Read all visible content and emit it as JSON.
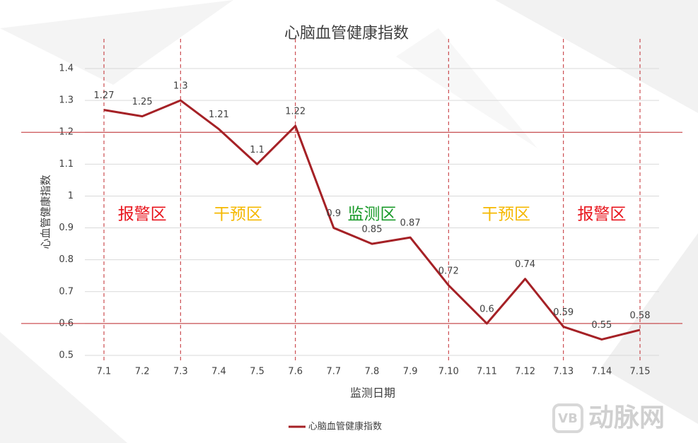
{
  "chart_data": {
    "type": "line",
    "title": "心脑血管健康指数",
    "x_label": "监测日期",
    "y_label": "心血管健康指数",
    "categories": [
      "7.1",
      "7.2",
      "7.3",
      "7.4",
      "7.5",
      "7.6",
      "7.7",
      "7.8",
      "7.9",
      "7.10",
      "7.11",
      "7.12",
      "7.13",
      "7.14",
      "7.15"
    ],
    "series": [
      {
        "name": "心脑血管健康指数",
        "color": "#a52126",
        "values": [
          1.27,
          1.25,
          1.3,
          1.21,
          1.1,
          1.22,
          0.9,
          0.85,
          0.87,
          0.72,
          0.6,
          0.74,
          0.59,
          0.55,
          0.58
        ]
      }
    ],
    "ylim": [
      0.5,
      1.4
    ],
    "yticks": [
      0.5,
      0.6,
      0.7,
      0.8,
      0.9,
      1,
      1.1,
      1.2,
      1.3,
      1.4
    ],
    "grid": true,
    "hlines": [
      1.2,
      0.6
    ],
    "hline_color": "#c0282d",
    "zones": [
      {
        "label": "报警区",
        "color": "#e8141c",
        "from": "7.1",
        "to": "7.3"
      },
      {
        "label": "干预区",
        "color": "#f5b800",
        "from": "7.3",
        "to": "7.6"
      },
      {
        "label": "监测区",
        "color": "#1a9a2a",
        "from": "7.6",
        "to": "7.10"
      },
      {
        "label": "干预区",
        "color": "#f5b800",
        "from": "7.10",
        "to": "7.13"
      },
      {
        "label": "报警区",
        "color": "#e8141c",
        "from": "7.13",
        "to": "7.15"
      }
    ],
    "legend": "bottom"
  },
  "watermark": "动脉网"
}
